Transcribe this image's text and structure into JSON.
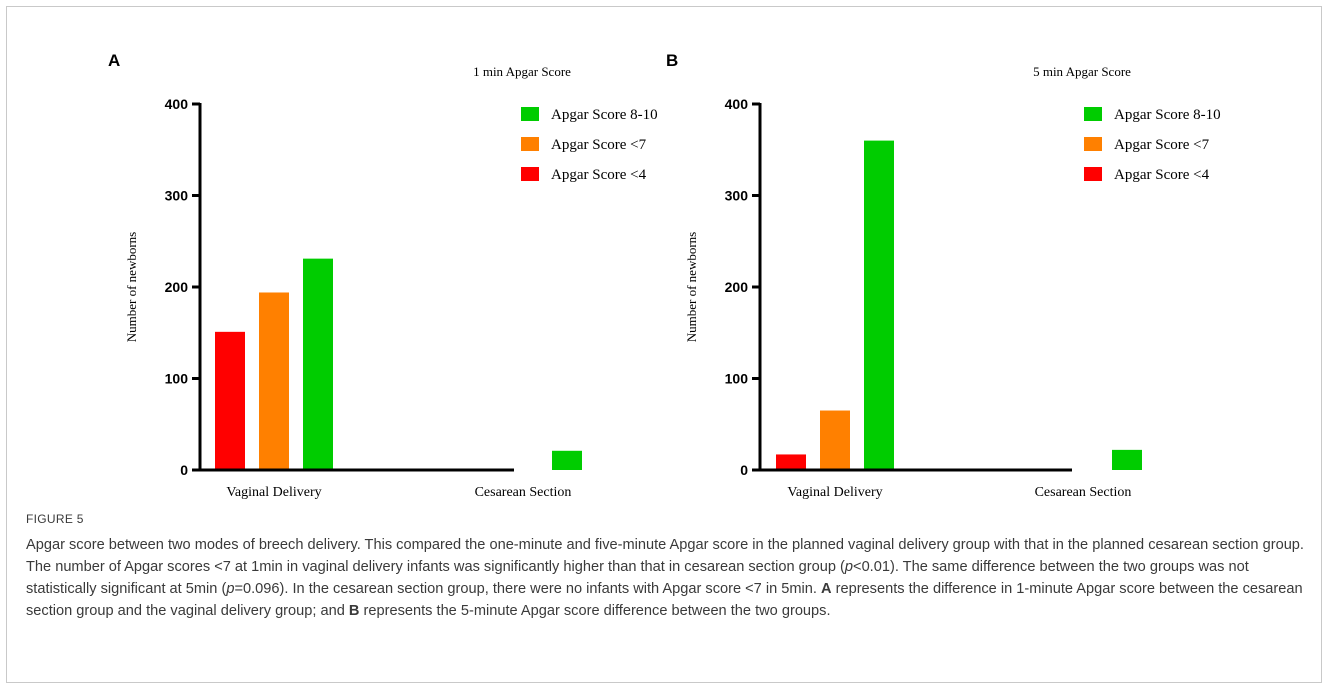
{
  "chart_data": [
    {
      "type": "bar",
      "panel_label": "A",
      "title": "1 min Apgar Score",
      "ylabel": "Number of newborns",
      "xlabel": "",
      "ylim": [
        0,
        400
      ],
      "yticks": [
        0,
        100,
        200,
        300,
        400
      ],
      "categories": [
        "Vaginal Delivery",
        "Cesarean Section"
      ],
      "series": [
        {
          "name": "Apgar Score <4",
          "color": "#ff0000",
          "values": [
            151,
            0
          ]
        },
        {
          "name": "Apgar Score <7",
          "color": "#ff8000",
          "values": [
            194,
            0
          ]
        },
        {
          "name": "Apgar Score 8-10",
          "color": "#00cc00",
          "values": [
            231,
            21
          ]
        }
      ],
      "legend": {
        "placement": "top-right",
        "order": [
          "Apgar Score 8-10",
          "Apgar Score <7",
          "Apgar Score <4"
        ]
      }
    },
    {
      "type": "bar",
      "panel_label": "B",
      "title": "5 min Apgar Score",
      "ylabel": "Number of newborns",
      "xlabel": "",
      "ylim": [
        0,
        400
      ],
      "yticks": [
        0,
        100,
        200,
        300,
        400
      ],
      "categories": [
        "Vaginal Delivery",
        "Cesarean Section"
      ],
      "series": [
        {
          "name": "Apgar Score <4",
          "color": "#ff0000",
          "values": [
            17,
            0
          ]
        },
        {
          "name": "Apgar Score <7",
          "color": "#ff8000",
          "values": [
            65,
            0
          ]
        },
        {
          "name": "Apgar Score 8-10",
          "color": "#00cc00",
          "values": [
            360,
            22
          ]
        }
      ],
      "legend": {
        "placement": "top-right",
        "order": [
          "Apgar Score 8-10",
          "Apgar Score <7",
          "Apgar Score <4"
        ]
      }
    }
  ],
  "caption": {
    "label": "FIGURE 5",
    "p1": "Apgar score between two modes of breech delivery. This compared the one-minute and five-minute Apgar score in the planned vaginal delivery group with that in the planned cesarean section group. The number of Apgar scores <7 at 1min in vaginal delivery infants was significantly higher than that in cesarean section group (",
    "p_sym1": "p",
    "p2": "<0.01). The same difference between the two groups was not statistically significant at 5min (",
    "p_sym2": "p",
    "p3": "=0.096). In the cesarean section group, there were no infants with Apgar score <7 in 5min. ",
    "bold_a": "A",
    "p4": " represents the difference in 1-minute Apgar score between the cesarean section group and the vaginal delivery group; and ",
    "bold_b": "B",
    "p5": " represents the 5-minute Apgar score difference between the two groups."
  }
}
